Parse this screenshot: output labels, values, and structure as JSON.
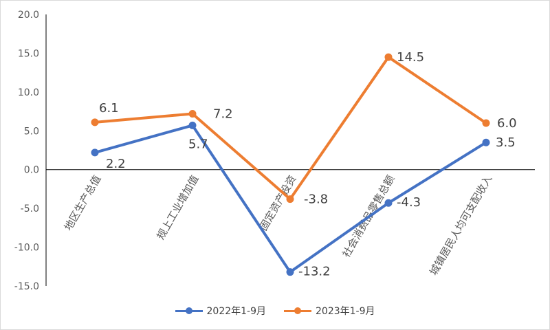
{
  "chart_data": {
    "type": "line",
    "categories": [
      "地区生产总值",
      "规上工业增加值",
      "固定资产投资",
      "社会消费品零售总额",
      "城镇居民人均可支配收入"
    ],
    "series": [
      {
        "name": "2022年1-9月",
        "color": "#4472C4",
        "values": [
          2.2,
          5.7,
          -13.2,
          -4.3,
          3.5
        ],
        "labels": [
          "2.2",
          "5.7",
          "-13.2",
          "-4.3",
          "3.5"
        ]
      },
      {
        "name": "2023年1-9月",
        "color": "#ED7D31",
        "values": [
          6.1,
          7.2,
          -3.8,
          14.5,
          6.0
        ],
        "labels": [
          "6.1",
          "7.2",
          "-3.8",
          "14.5",
          "6.0"
        ]
      }
    ],
    "yticks": [
      "20.0",
      "15.0",
      "10.0",
      "5.0",
      "0.0",
      "-5.0",
      "-10.0",
      "-15.0"
    ],
    "ylim": [
      -15,
      20
    ],
    "title": "",
    "xlabel": "",
    "ylabel": "",
    "legend_position": "bottom"
  }
}
